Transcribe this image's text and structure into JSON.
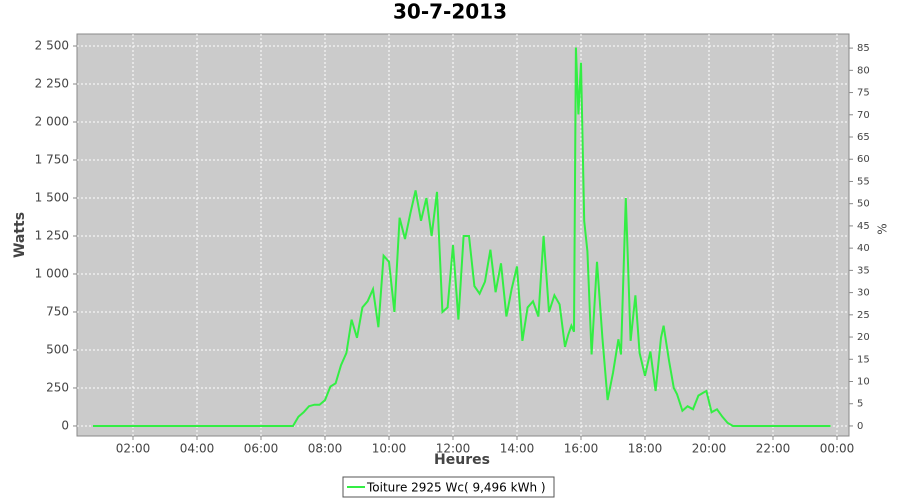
{
  "chart_data": {
    "type": "line",
    "title": "30-7-2013",
    "xlabel": "Heures",
    "ylabel": "Watts",
    "y2label": "%",
    "xlim": [
      0.25,
      24.375
    ],
    "xticks": [
      {
        "value": 2,
        "label": "02:00"
      },
      {
        "value": 4,
        "label": "04:00"
      },
      {
        "value": 6,
        "label": "06:00"
      },
      {
        "value": 8,
        "label": "08:00"
      },
      {
        "value": 10,
        "label": "10:00"
      },
      {
        "value": 12,
        "label": "12:00"
      },
      {
        "value": 14,
        "label": "14:00"
      },
      {
        "value": 16,
        "label": "16:00"
      },
      {
        "value": 18,
        "label": "18:00"
      },
      {
        "value": 20,
        "label": "20:00"
      },
      {
        "value": 22,
        "label": "22:00"
      },
      {
        "value": 24,
        "label": "00:00"
      }
    ],
    "ylim": [
      -66,
      2579
    ],
    "yticks": [
      0,
      250,
      500,
      750,
      {
        "value": 1000,
        "label": "1 000"
      },
      {
        "value": 1250,
        "label": "1 250"
      },
      {
        "value": 1500,
        "label": "1 500"
      },
      {
        "value": 1750,
        "label": "1 750"
      },
      {
        "value": 2000,
        "label": "2 000"
      },
      {
        "value": 2250,
        "label": "2 250"
      },
      {
        "value": 2500,
        "label": "2 500"
      }
    ],
    "y2lim": [
      -2.26,
      88.17
    ],
    "y2ticks": [
      0,
      5,
      10,
      15,
      20,
      25,
      30,
      35,
      40,
      45,
      50,
      55,
      60,
      65,
      70,
      75,
      80,
      85
    ],
    "grid": true,
    "legend": "bottom",
    "x": [
      0.75,
      6.5,
      7.0,
      7.17,
      7.33,
      7.5,
      7.67,
      7.83,
      8.0,
      8.17,
      8.33,
      8.5,
      8.67,
      8.83,
      9.0,
      9.17,
      9.33,
      9.5,
      9.67,
      9.83,
      10.0,
      10.17,
      10.33,
      10.5,
      10.67,
      10.83,
      11.0,
      11.17,
      11.33,
      11.5,
      11.67,
      11.83,
      12.0,
      12.17,
      12.33,
      12.5,
      12.67,
      12.83,
      13.0,
      13.17,
      13.33,
      13.5,
      13.67,
      13.83,
      14.0,
      14.17,
      14.33,
      14.5,
      14.67,
      14.83,
      15.0,
      15.17,
      15.33,
      15.5,
      15.6,
      15.7,
      15.78,
      15.84,
      15.92,
      16.0,
      16.1,
      16.2,
      16.33,
      16.5,
      16.67,
      16.83,
      17.0,
      17.17,
      17.25,
      17.4,
      17.55,
      17.7,
      17.83,
      18.0,
      18.17,
      18.33,
      18.5,
      18.58,
      18.75,
      18.9,
      19.0,
      19.17,
      19.33,
      19.5,
      19.67,
      19.83,
      19.92,
      20.08,
      20.25,
      20.42,
      20.58,
      20.75,
      23.8
    ],
    "series": [
      {
        "name": "Toiture 2925 Wc( 9,496 kWh )",
        "color": "#33ee44",
        "values": [
          0,
          0,
          0,
          60,
          90,
          130,
          140,
          140,
          170,
          260,
          280,
          400,
          480,
          700,
          580,
          780,
          820,
          900,
          650,
          1120,
          1080,
          750,
          1370,
          1230,
          1400,
          1550,
          1350,
          1500,
          1250,
          1540,
          750,
          780,
          1190,
          700,
          1250,
          1250,
          920,
          870,
          950,
          1160,
          880,
          1070,
          720,
          900,
          1050,
          560,
          780,
          820,
          720,
          1250,
          750,
          860,
          800,
          520,
          600,
          660,
          620,
          2490,
          2050,
          2390,
          1350,
          1150,
          470,
          1080,
          580,
          170,
          350,
          570,
          470,
          1500,
          560,
          860,
          480,
          330,
          490,
          230,
          580,
          660,
          430,
          250,
          210,
          100,
          130,
          110,
          200,
          220,
          230,
          90,
          110,
          60,
          20,
          0,
          0
        ]
      }
    ]
  }
}
